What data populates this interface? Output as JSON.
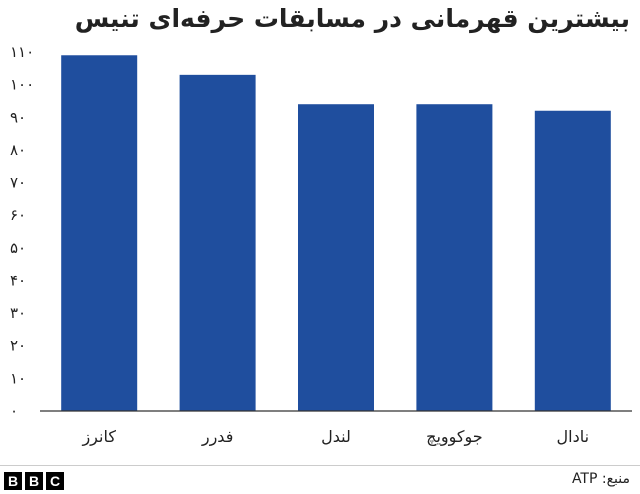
{
  "title": "بیشترین قهرمانی در مسابقات حرفه‌ای تنیس",
  "source": "منبع: ATP",
  "logo_letters": [
    "B",
    "B",
    "C"
  ],
  "colors": {
    "bar": "#1f4e9e",
    "axis": "#333333",
    "text": "#222222"
  },
  "chart_data": {
    "type": "bar",
    "categories": [
      "کانرز",
      "فدرر",
      "لندل",
      "جوکوویچ",
      "نادال"
    ],
    "values": [
      109,
      103,
      94,
      94,
      92
    ],
    "ylim": [
      0,
      110
    ],
    "yticks": [
      0,
      10,
      20,
      30,
      40,
      50,
      60,
      70,
      80,
      90,
      100,
      110
    ],
    "ytick_labels": [
      "۰",
      "۱۰",
      "۲۰",
      "۳۰",
      "۴۰",
      "۵۰",
      "۶۰",
      "۷۰",
      "۸۰",
      "۹۰",
      "۱۰۰",
      "۱۱۰"
    ],
    "xlabel": "",
    "ylabel": "",
    "grid": false,
    "legend": "none"
  }
}
